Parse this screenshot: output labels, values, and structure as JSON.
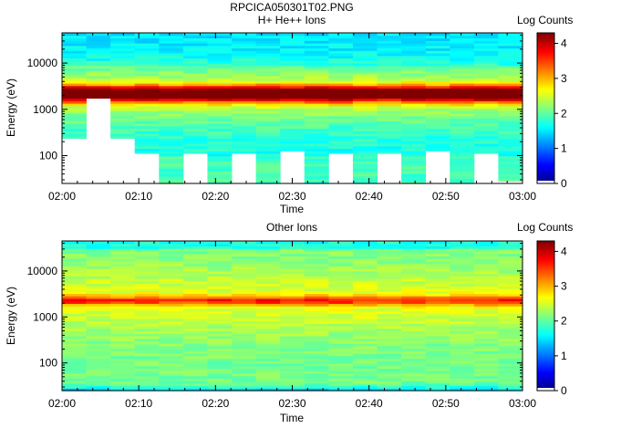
{
  "header": {
    "filename": "RPCICA050301T02.PNG"
  },
  "colorbar": {
    "label": "Log Counts",
    "ticks": [
      "0",
      "1",
      "2",
      "3",
      "4"
    ],
    "range": [
      0,
      4.3
    ]
  },
  "chart_data": [
    {
      "type": "heatmap",
      "title": "H+ He++ Ions",
      "xlabel": "Time",
      "ylabel": "Energy (eV)",
      "y_scale": "log",
      "ylim": [
        25,
        45000
      ],
      "x_ticks": [
        "02:00",
        "02:10",
        "02:20",
        "02:30",
        "02:40",
        "02:50",
        "03:00"
      ],
      "y_ticks": [
        "100",
        "1000",
        "10000"
      ],
      "time_range_minutes": [
        0,
        60
      ],
      "sweep_columns": 19,
      "peak_energy_ev": 2200,
      "peak_log_counts": 4.2,
      "low_energy_cutoff_ev": [
        250,
        1700,
        250,
        110,
        25,
        110,
        25,
        110,
        25,
        130,
        25,
        110,
        25,
        110,
        25,
        130,
        25,
        110,
        30
      ]
    },
    {
      "type": "heatmap",
      "title": "Other Ions",
      "xlabel": "Time",
      "ylabel": "Energy (eV)",
      "y_scale": "log",
      "ylim": [
        25,
        45000
      ],
      "x_ticks": [
        "02:00",
        "02:10",
        "02:20",
        "02:30",
        "02:40",
        "02:50",
        "03:00"
      ],
      "y_ticks": [
        "100",
        "1000",
        "10000"
      ],
      "time_range_minutes": [
        0,
        60
      ],
      "sweep_columns": 19,
      "peak_energy_ev": 2300,
      "peak_log_counts": 3.5
    }
  ]
}
